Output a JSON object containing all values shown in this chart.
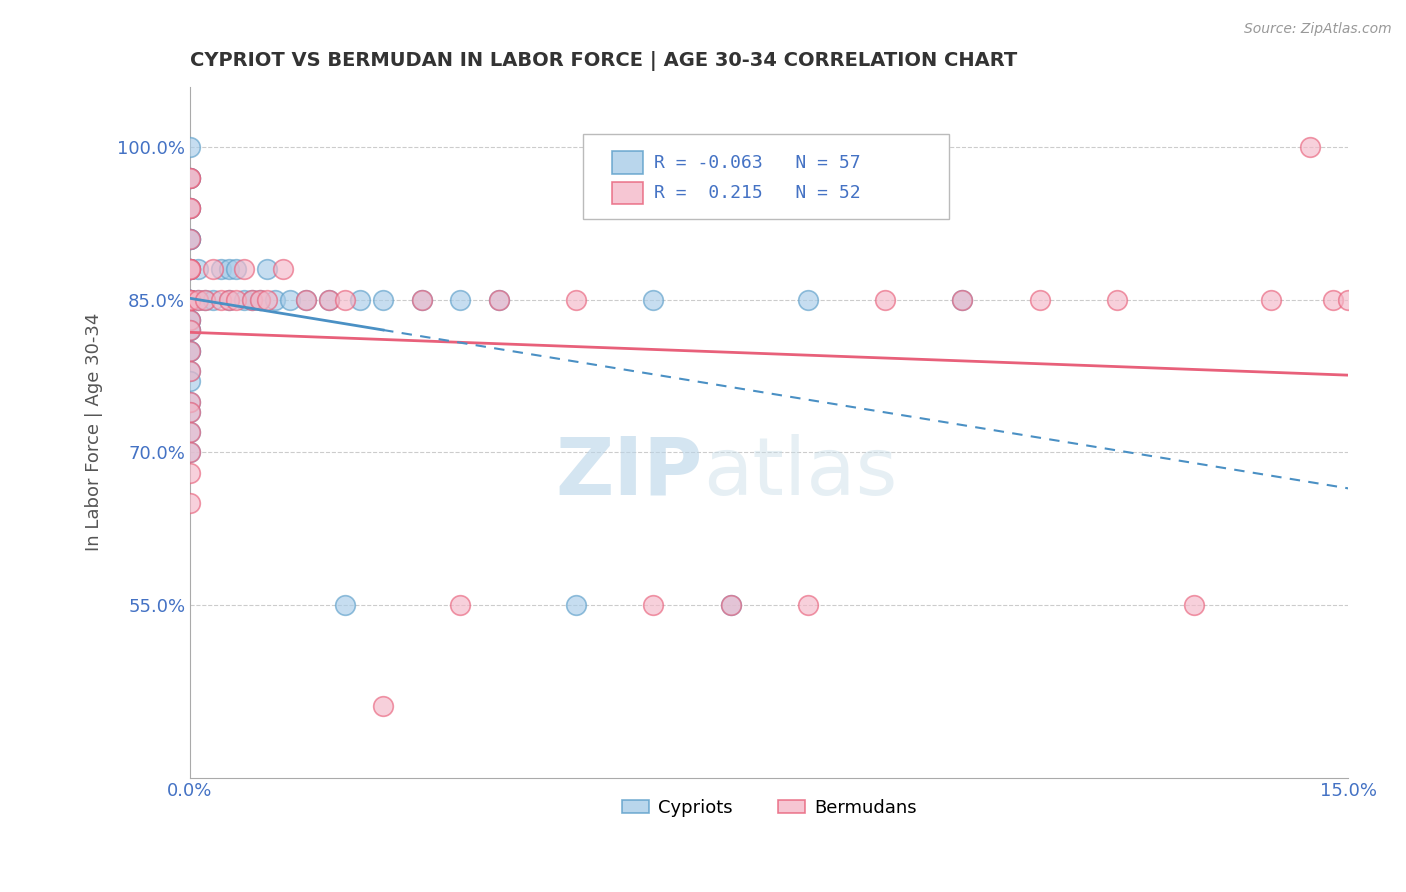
{
  "title": "CYPRIOT VS BERMUDAN IN LABOR FORCE | AGE 30-34 CORRELATION CHART",
  "source": "Source: ZipAtlas.com",
  "ylabel": "In Labor Force | Age 30-34",
  "xmin": 0.0,
  "xmax": 0.15,
  "ymin": 0.38,
  "ymax": 1.06,
  "yticks": [
    0.55,
    0.7,
    0.85,
    1.0
  ],
  "ytick_labels": [
    "55.0%",
    "70.0%",
    "85.0%",
    "100.0%"
  ],
  "xtick_labels": [
    "0.0%",
    "15.0%"
  ],
  "legend_R_cypriot": "-0.063",
  "legend_N_cypriot": "57",
  "legend_R_bermudan": "0.215",
  "legend_N_bermudan": "52",
  "cypriot_fill": "#a8cce8",
  "bermudan_fill": "#f4b8c8",
  "cypriot_edge": "#5b9ec9",
  "bermudan_edge": "#e8607a",
  "cypriot_line_color": "#4a90c4",
  "bermudan_line_color": "#e8607a",
  "background_color": "#ffffff",
  "watermark_zip": "ZIP",
  "watermark_atlas": "atlas",
  "cypriot_x": [
    0.0,
    0.0,
    0.0,
    0.0,
    0.0,
    0.0,
    0.0,
    0.0,
    0.0,
    0.0,
    0.0,
    0.0,
    0.0,
    0.0,
    0.0,
    0.0,
    0.0,
    0.0,
    0.0,
    0.0,
    0.0,
    0.0,
    0.0,
    0.0,
    0.0,
    0.0,
    0.0,
    0.0,
    0.0,
    0.0,
    0.001,
    0.001,
    0.002,
    0.003,
    0.004,
    0.005,
    0.005,
    0.006,
    0.007,
    0.008,
    0.009,
    0.01,
    0.011,
    0.013,
    0.015,
    0.018,
    0.02,
    0.022,
    0.025,
    0.03,
    0.035,
    0.04,
    0.05,
    0.06,
    0.07,
    0.08,
    0.1
  ],
  "cypriot_y": [
    1.0,
    0.97,
    0.97,
    0.94,
    0.94,
    0.91,
    0.91,
    0.91,
    0.88,
    0.88,
    0.88,
    0.88,
    0.85,
    0.85,
    0.85,
    0.85,
    0.85,
    0.85,
    0.83,
    0.83,
    0.82,
    0.82,
    0.8,
    0.8,
    0.78,
    0.77,
    0.75,
    0.74,
    0.72,
    0.7,
    0.88,
    0.85,
    0.85,
    0.85,
    0.88,
    0.88,
    0.85,
    0.88,
    0.85,
    0.85,
    0.85,
    0.88,
    0.85,
    0.85,
    0.85,
    0.85,
    0.55,
    0.85,
    0.85,
    0.85,
    0.85,
    0.85,
    0.55,
    0.85,
    0.55,
    0.85,
    0.85
  ],
  "bermudan_x": [
    0.0,
    0.0,
    0.0,
    0.0,
    0.0,
    0.0,
    0.0,
    0.0,
    0.0,
    0.0,
    0.0,
    0.0,
    0.0,
    0.0,
    0.0,
    0.0,
    0.0,
    0.0,
    0.0,
    0.0,
    0.0,
    0.001,
    0.002,
    0.003,
    0.004,
    0.005,
    0.006,
    0.007,
    0.008,
    0.009,
    0.01,
    0.012,
    0.015,
    0.018,
    0.02,
    0.025,
    0.03,
    0.035,
    0.04,
    0.05,
    0.06,
    0.07,
    0.08,
    0.09,
    0.1,
    0.11,
    0.12,
    0.13,
    0.14,
    0.145,
    0.148,
    0.15
  ],
  "bermudan_y": [
    0.97,
    0.97,
    0.94,
    0.94,
    0.91,
    0.88,
    0.88,
    0.88,
    0.85,
    0.85,
    0.85,
    0.83,
    0.82,
    0.8,
    0.78,
    0.75,
    0.74,
    0.72,
    0.7,
    0.68,
    0.65,
    0.85,
    0.85,
    0.88,
    0.85,
    0.85,
    0.85,
    0.88,
    0.85,
    0.85,
    0.85,
    0.88,
    0.85,
    0.85,
    0.85,
    0.45,
    0.85,
    0.55,
    0.85,
    0.85,
    0.55,
    0.55,
    0.55,
    0.85,
    0.85,
    0.85,
    0.85,
    0.55,
    0.85,
    1.0,
    0.85,
    0.85
  ]
}
